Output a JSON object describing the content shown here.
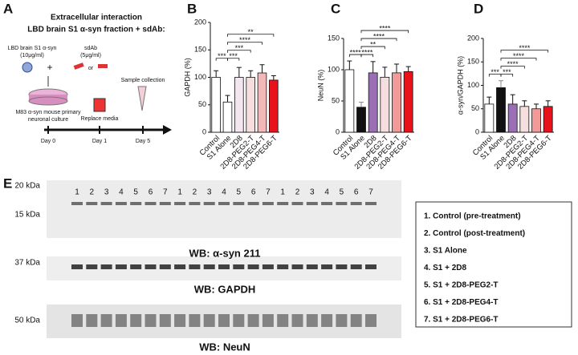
{
  "panel_a": {
    "label": "A",
    "title": "Extracellular interaction",
    "subtitle": "LBD brain S1 α-syn fraction + sdAb:",
    "s1_label": "LBD brain S1 α-syn",
    "s1_dose": "(10μg/ml)",
    "sdab_label": "sdAb",
    "sdab_dose": "(5μg/ml)",
    "or": "or",
    "culture_line1": "M83 α-syn mouse primary",
    "culture_line2": "neuronal culture",
    "replace": "Replace media",
    "collection": "Sample collection",
    "days": [
      "Day 0",
      "Day 1",
      "Day 5"
    ]
  },
  "chart_data": [
    {
      "type": "bar",
      "panel": "B",
      "ylabel": "GAPDH (%)",
      "categories": [
        "Control",
        "S1 Alone",
        "2D8",
        "2D8-PEG2-T",
        "2D8-PEG4-T",
        "2D8-PEG6-T"
      ],
      "values": [
        100,
        55,
        100,
        100,
        108,
        95
      ],
      "errors": [
        12,
        12,
        18,
        12,
        15,
        8
      ],
      "colors": [
        "#ffffff",
        "#ffffff",
        "#f3e6f0",
        "#f7dede",
        "#f5b8b8",
        "#e8121a"
      ],
      "ylim": [
        0,
        200
      ],
      "yticks": [
        0,
        50,
        100,
        150,
        200
      ],
      "significance": [
        {
          "pair": [
            "Control",
            "S1 Alone"
          ],
          "label": "***"
        },
        {
          "pair": [
            "S1 Alone",
            "2D8"
          ],
          "label": "***"
        },
        {
          "pair": [
            "S1 Alone",
            "2D8-PEG2-T"
          ],
          "label": "***"
        },
        {
          "pair": [
            "S1 Alone",
            "2D8-PEG4-T"
          ],
          "label": "****"
        },
        {
          "pair": [
            "S1 Alone",
            "2D8-PEG6-T"
          ],
          "label": "**"
        }
      ]
    },
    {
      "type": "bar",
      "panel": "C",
      "ylabel": "NeuN (%)",
      "categories": [
        "Control",
        "S1 Alone",
        "2D8",
        "2D8-PEG2-T",
        "2D8-PEG4-T",
        "2D8-PEG6-T"
      ],
      "values": [
        100,
        40,
        95,
        88,
        95,
        97
      ],
      "errors": [
        14,
        8,
        18,
        16,
        14,
        8
      ],
      "colors": [
        "#ffffff",
        "#111111",
        "#9b6fb5",
        "#f7dede",
        "#f29a9a",
        "#e8121a"
      ],
      "ylim": [
        0,
        150
      ],
      "yticks": [
        0,
        50,
        100,
        150
      ],
      "significance": [
        {
          "pair": [
            "Control",
            "S1 Alone"
          ],
          "label": "****"
        },
        {
          "pair": [
            "S1 Alone",
            "2D8"
          ],
          "label": "****"
        },
        {
          "pair": [
            "S1 Alone",
            "2D8-PEG2-T"
          ],
          "label": "**"
        },
        {
          "pair": [
            "S1 Alone",
            "2D8-PEG4-T"
          ],
          "label": "****"
        },
        {
          "pair": [
            "S1 Alone",
            "2D8-PEG6-T"
          ],
          "label": "****"
        }
      ]
    },
    {
      "type": "bar",
      "panel": "D",
      "ylabel": "α-syn/GAPDH (%)",
      "categories": [
        "Control",
        "S1 Alone",
        "2D8",
        "2D8-PEG2-T",
        "2D8-PEG4-T",
        "2D8-PEG6-T"
      ],
      "values": [
        60,
        95,
        60,
        55,
        50,
        55
      ],
      "errors": [
        15,
        15,
        20,
        12,
        10,
        12
      ],
      "colors": [
        "#ffffff",
        "#111111",
        "#9b6fb5",
        "#f7dede",
        "#f29a9a",
        "#e8121a"
      ],
      "ylim": [
        0,
        200
      ],
      "yticks": [
        0,
        50,
        100,
        150,
        200
      ],
      "significance": [
        {
          "pair": [
            "Control",
            "S1 Alone"
          ],
          "label": "***"
        },
        {
          "pair": [
            "S1 Alone",
            "2D8"
          ],
          "label": "***"
        },
        {
          "pair": [
            "S1 Alone",
            "2D8-PEG2-T"
          ],
          "label": "****"
        },
        {
          "pair": [
            "S1 Alone",
            "2D8-PEG4-T"
          ],
          "label": "****"
        },
        {
          "pair": [
            "S1 Alone",
            "2D8-PEG6-T"
          ],
          "label": "****"
        }
      ]
    }
  ],
  "panel_e": {
    "label": "E",
    "markers": [
      "20 kDa",
      "15 kDa",
      "37 kDa",
      "50 kDa"
    ],
    "lanes": [
      "1",
      "2",
      "3",
      "4",
      "5",
      "6",
      "7"
    ],
    "blots": [
      "WB: α-syn 211",
      "WB: GAPDH",
      "WB: NeuN"
    ],
    "legend": [
      "1.  Control (pre-treatment)",
      "2.  Control (post-treatment)",
      "3.  S1 Alone",
      "4.  S1 + 2D8",
      "5.  S1 + 2D8-PEG2-T",
      "6.  S1 + 2D8-PEG4-T",
      "7.  S1 + 2D8-PEG6-T"
    ]
  }
}
